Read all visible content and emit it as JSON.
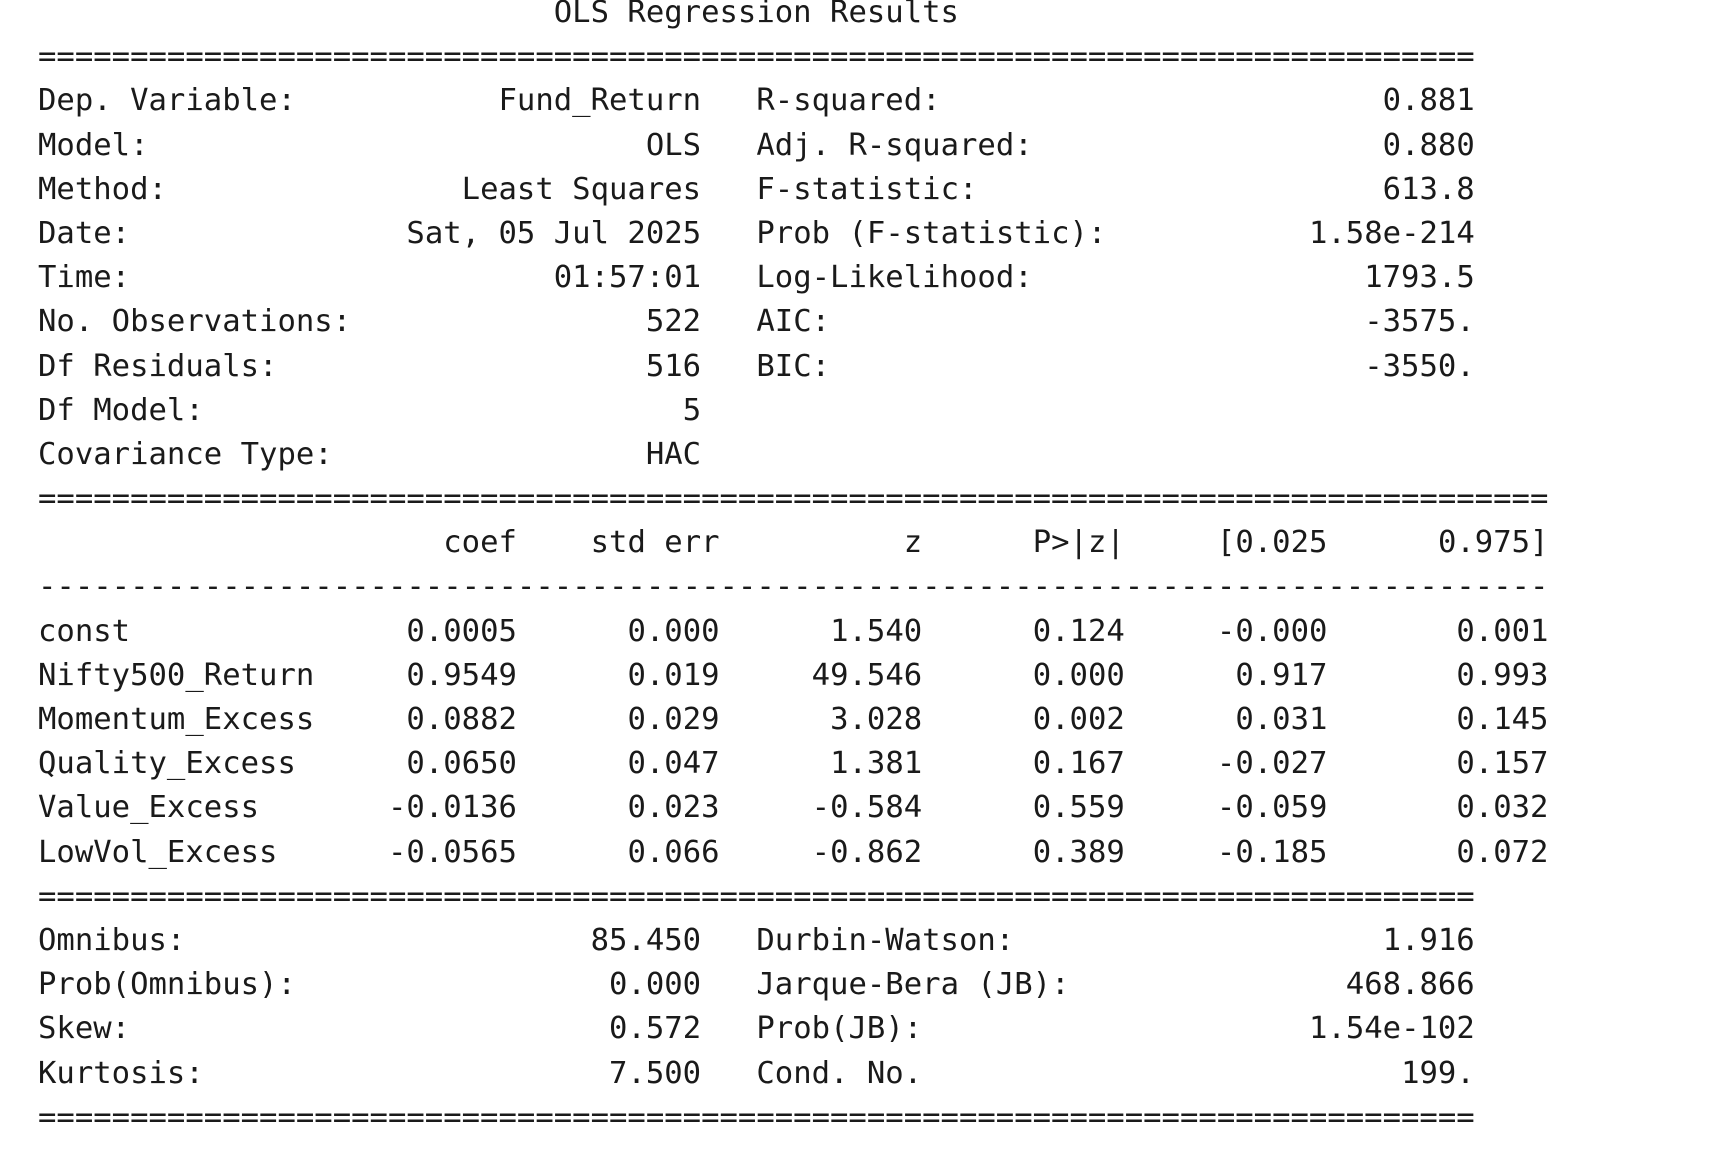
{
  "title": "OLS Regression Results",
  "rule_double_short": "==============================================================================",
  "rule_double_long": "==================================================================================",
  "rule_single_long": "----------------------------------------------------------------------------------",
  "top_block": {
    "rows": [
      {
        "label": "Dep. Variable:",
        "value": "Fund_Return",
        "label2": "R-squared:",
        "value2": "0.881"
      },
      {
        "label": "Model:",
        "value": "OLS",
        "label2": "Adj. R-squared:",
        "value2": "0.880"
      },
      {
        "label": "Method:",
        "value": "Least Squares",
        "label2": "F-statistic:",
        "value2": "613.8"
      },
      {
        "label": "Date:",
        "value": "Sat, 05 Jul 2025",
        "label2": "Prob (F-statistic):",
        "value2": "1.58e-214"
      },
      {
        "label": "Time:",
        "value": "01:57:01",
        "label2": "Log-Likelihood:",
        "value2": "1793.5"
      },
      {
        "label": "No. Observations:",
        "value": "522",
        "label2": "AIC:",
        "value2": "-3575."
      },
      {
        "label": "Df Residuals:",
        "value": "516",
        "label2": "BIC:",
        "value2": "-3550."
      },
      {
        "label": "Df Model:",
        "value": "5",
        "label2": "",
        "value2": ""
      },
      {
        "label": "Covariance Type:",
        "value": "HAC",
        "label2": "",
        "value2": ""
      }
    ]
  },
  "coef_table": {
    "headers": [
      "",
      "coef",
      "std err",
      "z",
      "P>|z|",
      "[0.025",
      "0.975]"
    ],
    "rows": [
      [
        "const",
        "0.0005",
        "0.000",
        "1.540",
        "0.124",
        "-0.000",
        "0.001"
      ],
      [
        "Nifty500_Return",
        "0.9549",
        "0.019",
        "49.546",
        "0.000",
        "0.917",
        "0.993"
      ],
      [
        "Momentum_Excess",
        "0.0882",
        "0.029",
        "3.028",
        "0.002",
        "0.031",
        "0.145"
      ],
      [
        "Quality_Excess",
        "0.0650",
        "0.047",
        "1.381",
        "0.167",
        "-0.027",
        "0.157"
      ],
      [
        "Value_Excess",
        "-0.0136",
        "0.023",
        "-0.584",
        "0.559",
        "-0.059",
        "0.032"
      ],
      [
        "LowVol_Excess",
        "-0.0565",
        "0.066",
        "-0.862",
        "0.389",
        "-0.185",
        "0.072"
      ]
    ]
  },
  "bottom_block": {
    "rows": [
      {
        "label": "Omnibus:",
        "value": "85.450",
        "label2": "Durbin-Watson:",
        "value2": "1.916"
      },
      {
        "label": "Prob(Omnibus):",
        "value": "0.000",
        "label2": "Jarque-Bera (JB):",
        "value2": "468.866"
      },
      {
        "label": "Skew:",
        "value": "0.572",
        "label2": "Prob(JB):",
        "value2": "1.54e-102"
      },
      {
        "label": "Kurtosis:",
        "value": "7.500",
        "label2": "Cond. No.",
        "value2": "199."
      }
    ]
  }
}
